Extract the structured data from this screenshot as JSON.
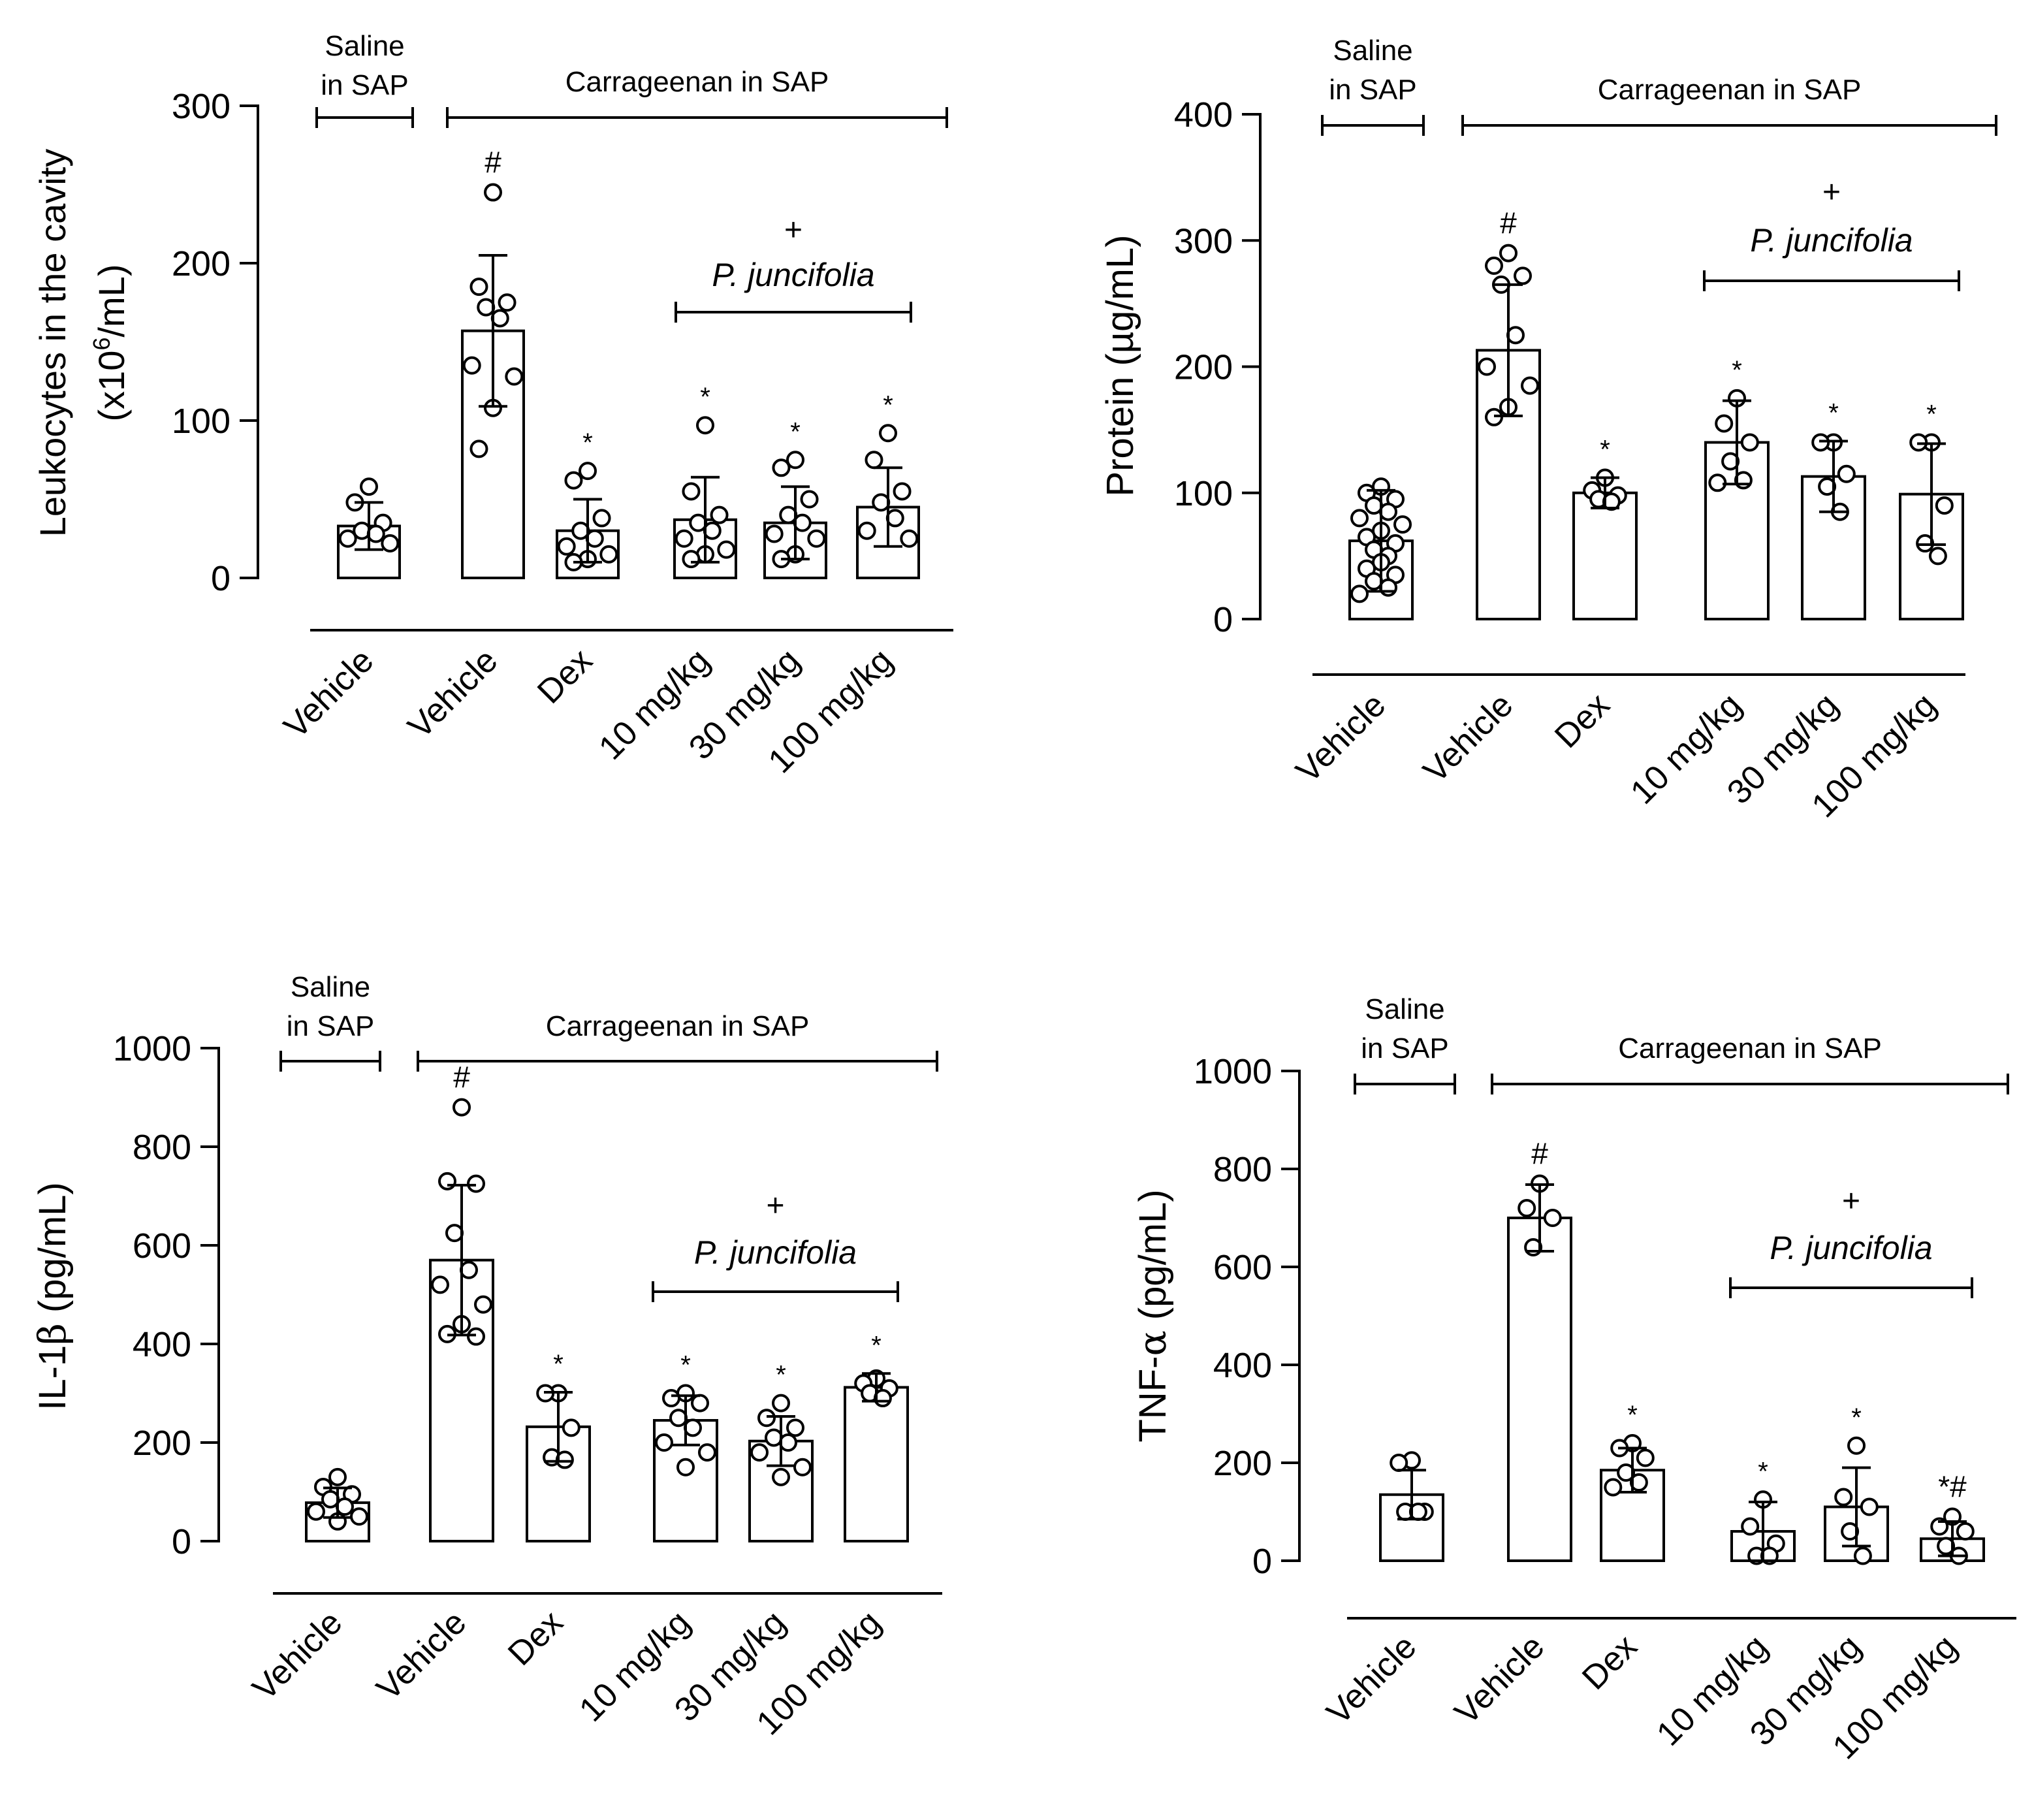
{
  "chart_data": [
    {
      "type": "bar",
      "ylabel": "Leukocytes in the cavity",
      "ylabel_units_prefix": "(x10",
      "ylabel_units_sup": "6",
      "ylabel_units_suffix": "/mL)",
      "ylim": [
        0,
        300
      ],
      "yticks": [
        0,
        100,
        200,
        300
      ],
      "group_saline": [
        "Saline",
        "in SAP"
      ],
      "group_carrageenan": "Carrageenan in SAP",
      "plus": "+",
      "treatment": "P. juncifolia",
      "categories": [
        "Vehicle",
        "Vehicle",
        "Dex",
        "10 mg/kg",
        "30 mg/kg",
        "100 mg/kg"
      ],
      "values": [
        33,
        157,
        30,
        37,
        35,
        45
      ],
      "sd": [
        15,
        48,
        20,
        27,
        23,
        25
      ],
      "marks": [
        "",
        "#",
        "*",
        "*",
        "*",
        "*"
      ],
      "points": [
        [
          58,
          48,
          35,
          30,
          28,
          25,
          22
        ],
        [
          245,
          185,
          175,
          172,
          165,
          135,
          128,
          108,
          82
        ],
        [
          68,
          62,
          38,
          30,
          25,
          20,
          15,
          12,
          10
        ],
        [
          97,
          55,
          40,
          35,
          30,
          25,
          18,
          15,
          12
        ],
        [
          75,
          70,
          50,
          40,
          35,
          28,
          25,
          15,
          12
        ],
        [
          92,
          75,
          55,
          48,
          38,
          30,
          25
        ]
      ]
    },
    {
      "type": "bar",
      "ylabel": "Protein (µg/mL)",
      "ylim": [
        0,
        400
      ],
      "yticks": [
        0,
        100,
        200,
        300,
        400
      ],
      "group_saline": [
        "Saline",
        "in SAP"
      ],
      "group_carrageenan": "Carrageenan in SAP",
      "plus": "+",
      "treatment": "P. juncifolia",
      "categories": [
        "Vehicle",
        "Vehicle",
        "Dex",
        "10 mg/kg",
        "30 mg/kg",
        "100 mg/kg"
      ],
      "values": [
        62,
        213,
        100,
        140,
        113,
        99
      ],
      "sd": [
        40,
        52,
        12,
        33,
        28,
        40
      ],
      "marks": [
        "",
        "#",
        "*",
        "*",
        "*",
        "*"
      ],
      "points": [
        [
          105,
          100,
          95,
          90,
          85,
          80,
          75,
          70,
          65,
          60,
          55,
          50,
          45,
          40,
          35,
          30,
          25,
          20
        ],
        [
          290,
          280,
          272,
          265,
          225,
          200,
          185,
          168,
          160
        ],
        [
          112,
          102,
          98,
          95,
          93
        ],
        [
          175,
          155,
          140,
          125,
          110,
          108
        ],
        [
          140,
          140,
          115,
          105,
          85
        ],
        [
          140,
          140,
          90,
          60,
          50
        ]
      ]
    },
    {
      "type": "bar",
      "ylabel_prefix": "IL-1",
      "ylabel_greek": "β",
      "ylabel_suffix": " (pg/mL)",
      "ylim": [
        0,
        1000
      ],
      "yticks": [
        0,
        200,
        400,
        600,
        800,
        1000
      ],
      "group_saline": [
        "Saline",
        "in SAP"
      ],
      "group_carrageenan": "Carrageenan in SAP",
      "plus": "+",
      "treatment": "P. juncifolia",
      "categories": [
        "Vehicle",
        "Vehicle",
        "Dex",
        "10 mg/kg",
        "30 mg/kg",
        "100 mg/kg"
      ],
      "values": [
        78,
        570,
        232,
        245,
        203,
        312
      ],
      "sd": [
        30,
        152,
        70,
        50,
        50,
        28
      ],
      "marks": [
        "",
        "#",
        "*",
        "*",
        "*",
        "*"
      ],
      "points": [
        [
          130,
          110,
          95,
          85,
          70,
          60,
          50,
          40
        ],
        [
          880,
          730,
          725,
          625,
          550,
          520,
          480,
          440,
          420,
          415
        ],
        [
          300,
          300,
          230,
          170,
          165
        ],
        [
          300,
          290,
          280,
          250,
          230,
          200,
          180,
          150
        ],
        [
          280,
          250,
          230,
          210,
          200,
          180,
          150,
          130
        ],
        [
          330,
          320,
          310,
          300,
          290
        ]
      ]
    },
    {
      "type": "bar",
      "ylabel_prefix": "TNF-",
      "ylabel_greek": "α",
      "ylabel_suffix": " (pg/mL)",
      "ylim": [
        0,
        1000
      ],
      "yticks": [
        0,
        200,
        400,
        600,
        800,
        1000
      ],
      "group_saline": [
        "Saline",
        "in SAP"
      ],
      "group_carrageenan": "Carrageenan in SAP",
      "plus": "+",
      "treatment": "P. juncifolia",
      "categories": [
        "Vehicle",
        "Vehicle",
        "Dex",
        "10 mg/kg",
        "30 mg/kg",
        "100 mg/kg"
      ],
      "values": [
        135,
        700,
        185,
        60,
        110,
        45
      ],
      "sd": [
        50,
        68,
        45,
        60,
        80,
        35
      ],
      "marks": [
        "",
        "#",
        "*",
        "*",
        "*",
        "*#"
      ],
      "points": [
        [
          205,
          200,
          100,
          100,
          100
        ],
        [
          770,
          720,
          700,
          640
        ],
        [
          240,
          230,
          210,
          180,
          160,
          150
        ],
        [
          125,
          70,
          35,
          10,
          10
        ],
        [
          235,
          130,
          110,
          60,
          10
        ],
        [
          90,
          70,
          60,
          30,
          10
        ]
      ]
    }
  ]
}
